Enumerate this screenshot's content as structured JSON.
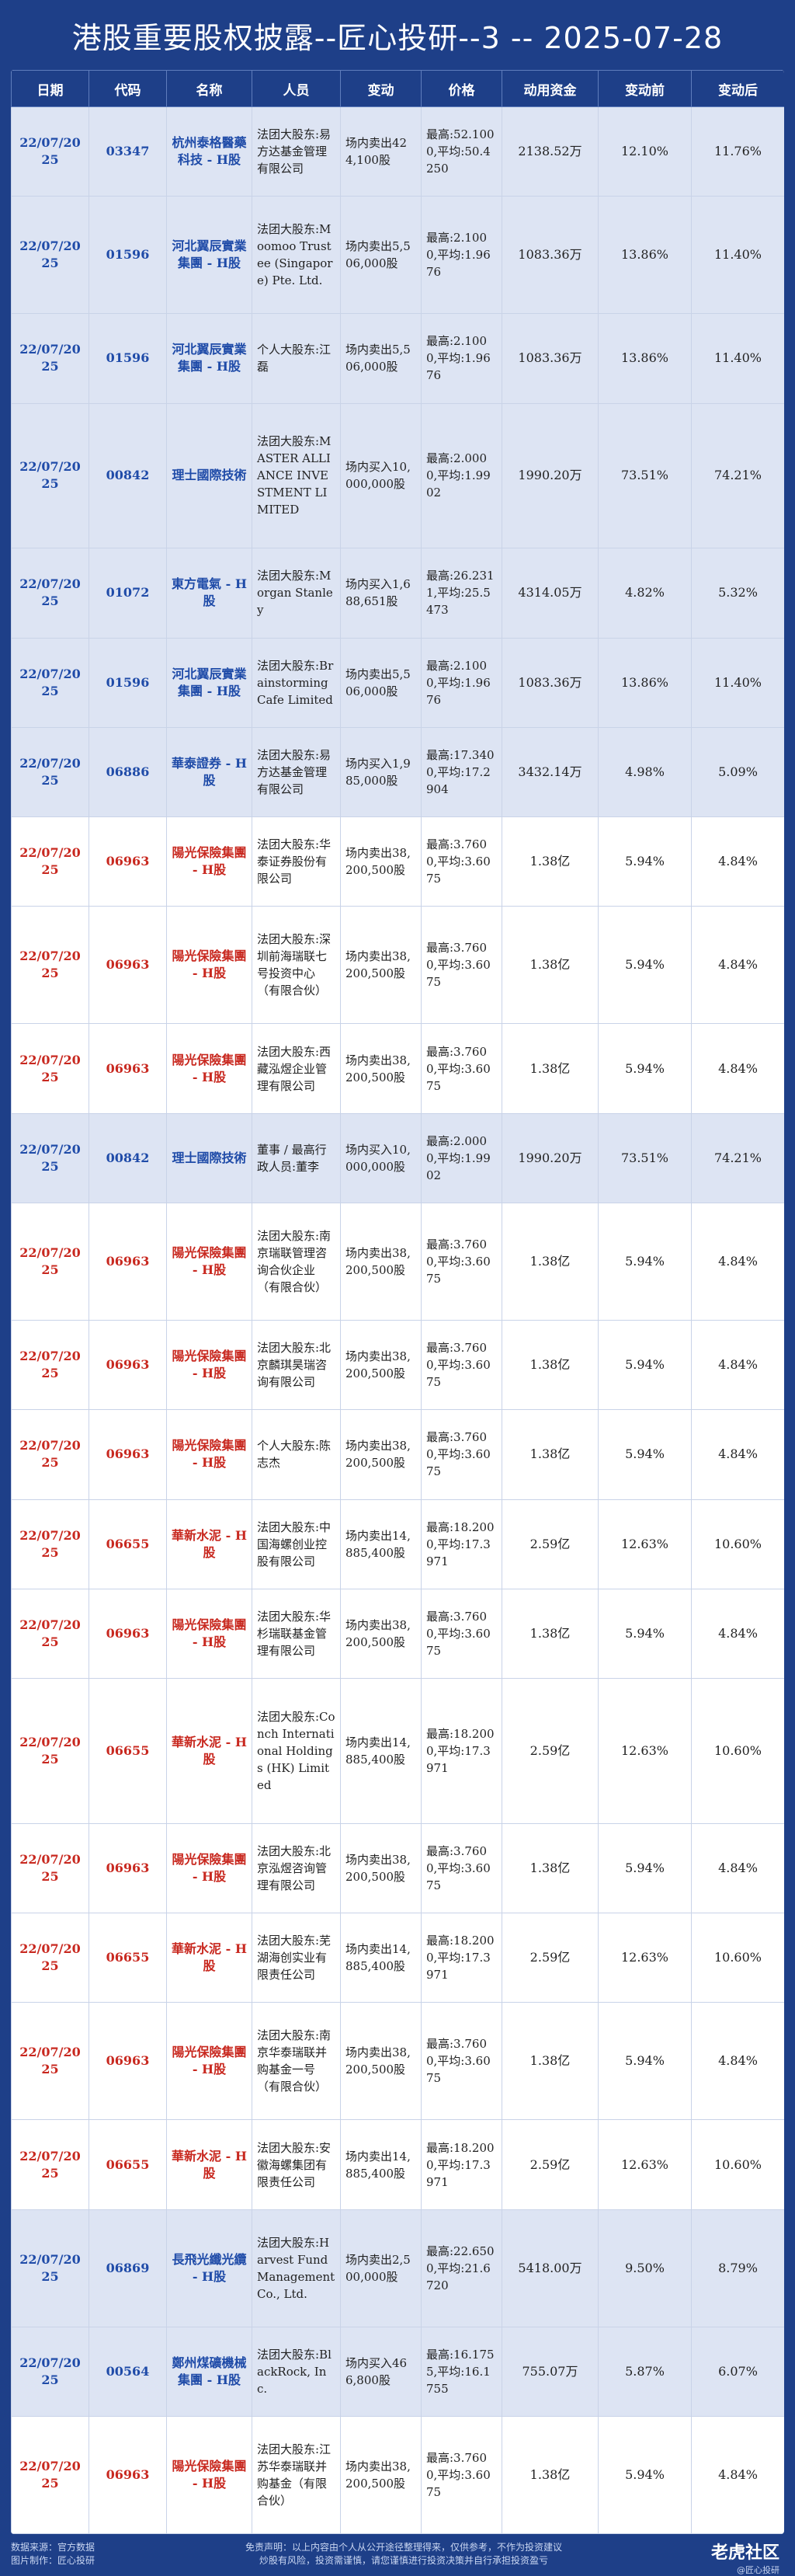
{
  "title": "港股重要股权披露--匠心投研--3 -- 2025-07-28",
  "headers": [
    "日期",
    "代码",
    "名称",
    "人员",
    "变动",
    "价格",
    "动用资金",
    "变动前",
    "变动后"
  ],
  "rows": [
    {
      "date": "22/07/2025",
      "code": "03347",
      "name": "杭州泰格醫藥科技 - H股",
      "person": "法团大股东:易方达基金管理有限公司",
      "change": "场内卖出424,100股",
      "price": "最高:52.1000,平均:50.4250",
      "funds": "2138.52万",
      "before": "12.10%",
      "after": "11.76%",
      "color": "blue"
    },
    {
      "date": "22/07/2025",
      "code": "01596",
      "name": "河北翼辰實業集團 - H股",
      "person": "法团大股东:Moomoo Trustee (Singapore) Pte. Ltd.",
      "change": "场内卖出5,506,000股",
      "price": "最高:2.1000,平均:1.9676",
      "funds": "1083.36万",
      "before": "13.86%",
      "after": "11.40%",
      "color": "blue"
    },
    {
      "date": "22/07/2025",
      "code": "01596",
      "name": "河北翼辰實業集團 - H股",
      "person": "个人大股东:江磊",
      "change": "场内卖出5,506,000股",
      "price": "最高:2.1000,平均:1.9676",
      "funds": "1083.36万",
      "before": "13.86%",
      "after": "11.40%",
      "color": "blue"
    },
    {
      "date": "22/07/2025",
      "code": "00842",
      "name": "理士國際技術",
      "person": "法团大股东:MASTER ALLIANCE INVESTMENT LIMITED",
      "change": "场内买入10,000,000股",
      "price": "最高:2.0000,平均:1.9902",
      "funds": "1990.20万",
      "before": "73.51%",
      "after": "74.21%",
      "color": "blue"
    },
    {
      "date": "22/07/2025",
      "code": "01072",
      "name": "東方電氣 - H股",
      "person": "法团大股东:Morgan Stanley",
      "change": "场内买入1,688,651股",
      "price": "最高:26.2311,平均:25.5473",
      "funds": "4314.05万",
      "before": "4.82%",
      "after": "5.32%",
      "color": "blue"
    },
    {
      "date": "22/07/2025",
      "code": "01596",
      "name": "河北翼辰實業集團 - H股",
      "person": "法团大股东:Brainstorming Cafe Limited",
      "change": "场内卖出5,506,000股",
      "price": "最高:2.1000,平均:1.9676",
      "funds": "1083.36万",
      "before": "13.86%",
      "after": "11.40%",
      "color": "blue"
    },
    {
      "date": "22/07/2025",
      "code": "06886",
      "name": "華泰證券 - H股",
      "person": "法团大股东:易方达基金管理有限公司",
      "change": "场内买入1,985,000股",
      "price": "最高:17.3400,平均:17.2904",
      "funds": "3432.14万",
      "before": "4.98%",
      "after": "5.09%",
      "color": "blue"
    },
    {
      "date": "22/07/2025",
      "code": "06963",
      "name": "陽光保險集團 - H股",
      "person": "法团大股东:华泰证券股份有限公司",
      "change": "场内卖出38,200,500股",
      "price": "最高:3.7600,平均:3.6075",
      "funds": "1.38亿",
      "before": "5.94%",
      "after": "4.84%",
      "color": "red"
    },
    {
      "date": "22/07/2025",
      "code": "06963",
      "name": "陽光保險集團 - H股",
      "person": "法团大股东:深圳前海瑞联七号投资中心（有限合伙）",
      "change": "场内卖出38,200,500股",
      "price": "最高:3.7600,平均:3.6075",
      "funds": "1.38亿",
      "before": "5.94%",
      "after": "4.84%",
      "color": "red"
    },
    {
      "date": "22/07/2025",
      "code": "06963",
      "name": "陽光保險集團 - H股",
      "person": "法团大股东:西藏泓煜企业管理有限公司",
      "change": "场内卖出38,200,500股",
      "price": "最高:3.7600,平均:3.6075",
      "funds": "1.38亿",
      "before": "5.94%",
      "after": "4.84%",
      "color": "red"
    },
    {
      "date": "22/07/2025",
      "code": "00842",
      "name": "理士國際技術",
      "person": "董事 / 最高行政人员:董李",
      "change": "场内买入10,000,000股",
      "price": "最高:2.0000,平均:1.9902",
      "funds": "1990.20万",
      "before": "73.51%",
      "after": "74.21%",
      "color": "blue"
    },
    {
      "date": "22/07/2025",
      "code": "06963",
      "name": "陽光保險集團 - H股",
      "person": "法团大股东:南京瑞联管理咨询合伙企业（有限合伙）",
      "change": "场内卖出38,200,500股",
      "price": "最高:3.7600,平均:3.6075",
      "funds": "1.38亿",
      "before": "5.94%",
      "after": "4.84%",
      "color": "red"
    },
    {
      "date": "22/07/2025",
      "code": "06963",
      "name": "陽光保險集團 - H股",
      "person": "法团大股东:北京麟琪昊瑞咨询有限公司",
      "change": "场内卖出38,200,500股",
      "price": "最高:3.7600,平均:3.6075",
      "funds": "1.38亿",
      "before": "5.94%",
      "after": "4.84%",
      "color": "red"
    },
    {
      "date": "22/07/2025",
      "code": "06963",
      "name": "陽光保險集團 - H股",
      "person": "个人大股东:陈志杰",
      "change": "场内卖出38,200,500股",
      "price": "最高:3.7600,平均:3.6075",
      "funds": "1.38亿",
      "before": "5.94%",
      "after": "4.84%",
      "color": "red"
    },
    {
      "date": "22/07/2025",
      "code": "06655",
      "name": "華新水泥 - H股",
      "person": "法团大股东:中国海螺创业控股有限公司",
      "change": "场内卖出14,885,400股",
      "price": "最高:18.2000,平均:17.3971",
      "funds": "2.59亿",
      "before": "12.63%",
      "after": "10.60%",
      "color": "red"
    },
    {
      "date": "22/07/2025",
      "code": "06963",
      "name": "陽光保險集團 - H股",
      "person": "法团大股东:华杉瑞联基金管理有限公司",
      "change": "场内卖出38,200,500股",
      "price": "最高:3.7600,平均:3.6075",
      "funds": "1.38亿",
      "before": "5.94%",
      "after": "4.84%",
      "color": "red"
    },
    {
      "date": "22/07/2025",
      "code": "06655",
      "name": "華新水泥 - H股",
      "person": "法团大股东:Conch International Holdings (HK) Limited",
      "change": "场内卖出14,885,400股",
      "price": "最高:18.2000,平均:17.3971",
      "funds": "2.59亿",
      "before": "12.63%",
      "after": "10.60%",
      "color": "red"
    },
    {
      "date": "22/07/2025",
      "code": "06963",
      "name": "陽光保險集團 - H股",
      "person": "法团大股东:北京泓煜咨询管理有限公司",
      "change": "场内卖出38,200,500股",
      "price": "最高:3.7600,平均:3.6075",
      "funds": "1.38亿",
      "before": "5.94%",
      "after": "4.84%",
      "color": "red"
    },
    {
      "date": "22/07/2025",
      "code": "06655",
      "name": "華新水泥 - H股",
      "person": "法团大股东:芜湖海创实业有限责任公司",
      "change": "场内卖出14,885,400股",
      "price": "最高:18.2000,平均:17.3971",
      "funds": "2.59亿",
      "before": "12.63%",
      "after": "10.60%",
      "color": "red"
    },
    {
      "date": "22/07/2025",
      "code": "06963",
      "name": "陽光保險集團 - H股",
      "person": "法团大股东:南京华泰瑞联并购基金一号（有限合伙）",
      "change": "场内卖出38,200,500股",
      "price": "最高:3.7600,平均:3.6075",
      "funds": "1.38亿",
      "before": "5.94%",
      "after": "4.84%",
      "color": "red"
    },
    {
      "date": "22/07/2025",
      "code": "06655",
      "name": "華新水泥 - H股",
      "person": "法团大股东:安徽海螺集团有限责任公司",
      "change": "场内卖出14,885,400股",
      "price": "最高:18.2000,平均:17.3971",
      "funds": "2.59亿",
      "before": "12.63%",
      "after": "10.60%",
      "color": "red"
    },
    {
      "date": "22/07/2025",
      "code": "06869",
      "name": "長飛光纖光纜 - H股",
      "person": "法团大股东:Harvest Fund Management Co., Ltd.",
      "change": "场内卖出2,500,000股",
      "price": "最高:22.6500,平均:21.6720",
      "funds": "5418.00万",
      "before": "9.50%",
      "after": "8.79%",
      "color": "blue"
    },
    {
      "date": "22/07/2025",
      "code": "00564",
      "name": "鄭州煤礦機械集團 - H股",
      "person": "法团大股东:BlackRock, Inc.",
      "change": "场内买入466,800股",
      "price": "最高:16.1755,平均:16.1755",
      "funds": "755.07万",
      "before": "5.87%",
      "after": "6.07%",
      "color": "blue"
    },
    {
      "date": "22/07/2025",
      "code": "06963",
      "name": "陽光保險集團 - H股",
      "person": "法团大股东:江苏华泰瑞联并购基金（有限合伙）",
      "change": "场内卖出38,200,500股",
      "price": "最高:3.7600,平均:3.6075",
      "funds": "1.38亿",
      "before": "5.94%",
      "after": "4.84%",
      "color": "red"
    }
  ],
  "footer": {
    "source": "数据来源：官方数据",
    "maker": "图片制作：匠心投研",
    "disclaimer1": "免责声明：以上内容由个人从公开途径整理得来，仅供参考，不作为投资建议",
    "disclaimer2": "炒股有风险，投资需谨慎，请您谨慎进行投资决策并自行承担投资盈亏",
    "brand": "老虎社区",
    "brand_sub": "@匠心投研"
  }
}
